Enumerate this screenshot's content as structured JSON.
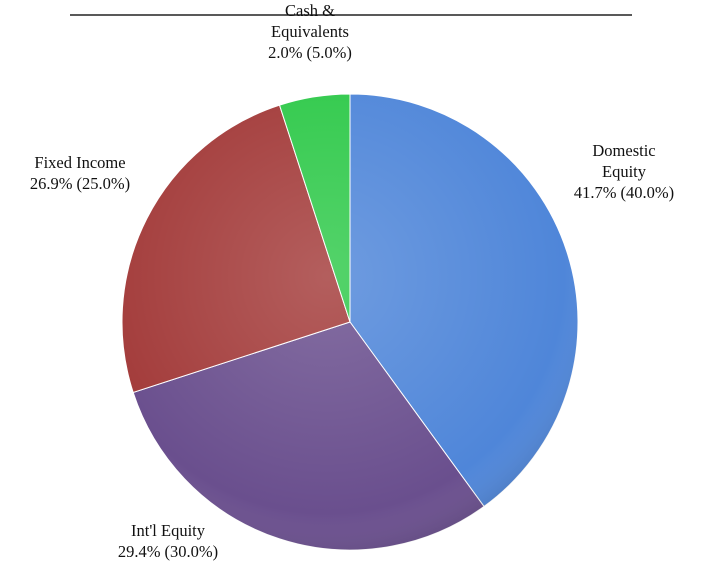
{
  "chart_data": {
    "type": "pie",
    "categories": [
      "Domestic\nEquity",
      "Int'l Equity",
      "Fixed Income",
      "Cash &\nEquivalents"
    ],
    "values": [
      40,
      30,
      25,
      5
    ],
    "value_labels": [
      "41.7% (40.0%)",
      "29.4% (30.0%)",
      "26.9% (25.0%)",
      "2.0% (5.0%)"
    ],
    "colors": [
      "#4f86d9",
      "#6a4f8e",
      "#a33b3a",
      "#2fc94a"
    ]
  }
}
